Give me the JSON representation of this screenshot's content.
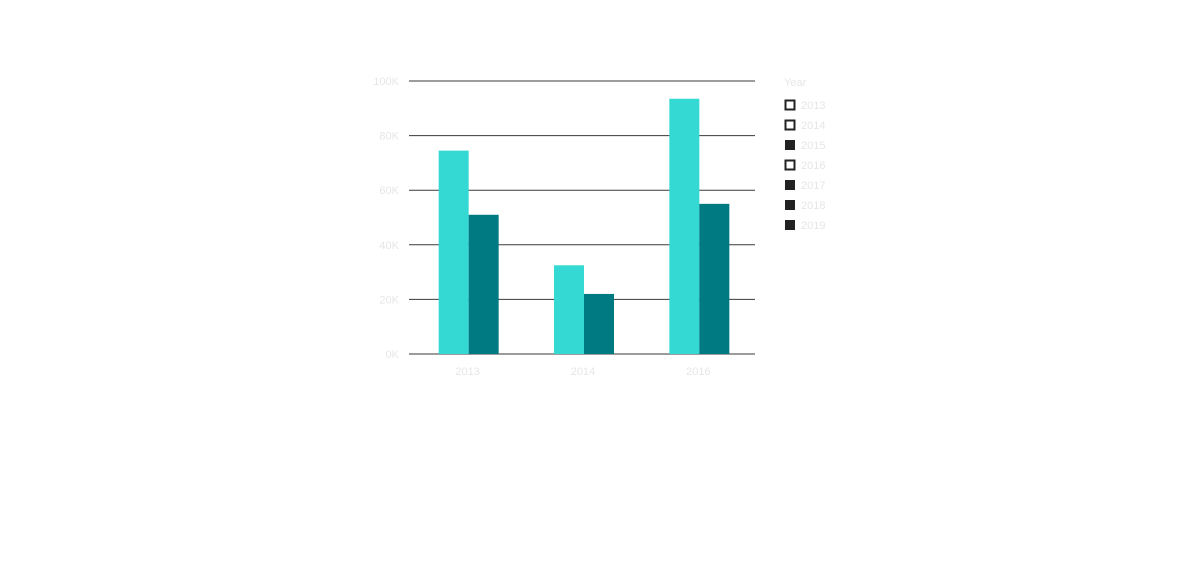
{
  "chart_data": {
    "type": "bar",
    "categories": [
      "2013",
      "2014",
      "2016"
    ],
    "series": [
      {
        "values": [
          74500,
          32500,
          93500
        ],
        "color": "#33d9d2"
      },
      {
        "values": [
          51000,
          22000,
          55000
        ],
        "color": "#007a82"
      }
    ],
    "ylim": [
      0,
      100000
    ],
    "yticks": [
      {
        "value": 0,
        "label": "0K"
      },
      {
        "value": 20000,
        "label": "20K"
      },
      {
        "value": 40000,
        "label": "40K"
      },
      {
        "value": 60000,
        "label": "60K"
      },
      {
        "value": 80000,
        "label": "80K"
      },
      {
        "value": 100000,
        "label": "100K"
      }
    ],
    "grid": true,
    "legend": {
      "position": "right",
      "title": "Year",
      "items": [
        {
          "label": "2013",
          "state": "outline"
        },
        {
          "label": "2014",
          "state": "outline"
        },
        {
          "label": "2015",
          "state": "filled"
        },
        {
          "label": "2016",
          "state": "outline"
        },
        {
          "label": "2017",
          "state": "filled"
        },
        {
          "label": "2018",
          "state": "filled"
        },
        {
          "label": "2019",
          "state": "filled"
        }
      ]
    },
    "colors": {
      "text": "#e6e6e6",
      "grid": "#3a3a3a",
      "legend_swatch": "#222222"
    }
  }
}
